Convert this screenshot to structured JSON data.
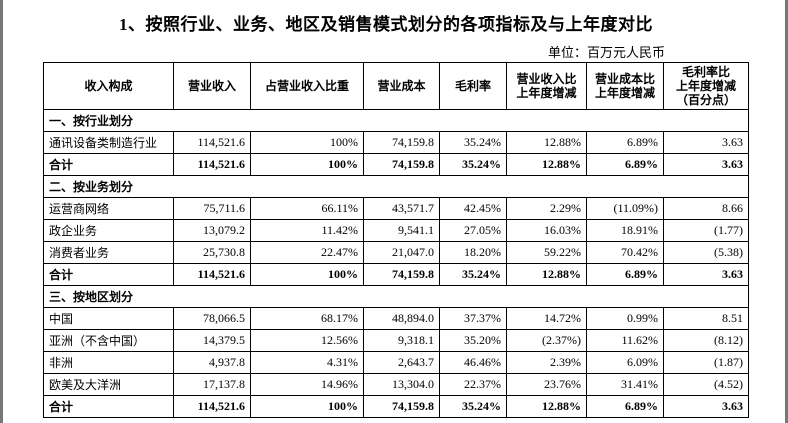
{
  "header": {
    "title": "1、按照行业、业务、地区及销售模式划分的各项指标及与上年度对比",
    "unit": "单位：百万元人民币"
  },
  "table": {
    "columns": [
      "收入构成",
      "营业收入",
      "占营业收入比重",
      "营业成本",
      "毛利率",
      "营业收入比\n上年度增减",
      "营业成本比\n上年度增减",
      "毛利率比\n上年度增减\n（百分点）"
    ],
    "sections": [
      {
        "title": "一、按行业划分",
        "rows": [
          [
            "通讯设备类制造行业",
            "114,521.6",
            "100%",
            "74,159.8",
            "35.24%",
            "12.88%",
            "6.89%",
            "3.63"
          ],
          [
            "合计",
            "114,521.6",
            "100%",
            "74,159.8",
            "35.24%",
            "12.88%",
            "6.89%",
            "3.63"
          ]
        ]
      },
      {
        "title": "二、按业务划分",
        "rows": [
          [
            "运营商网络",
            "75,711.6",
            "66.11%",
            "43,571.7",
            "42.45%",
            "2.29%",
            "(11.09%)",
            "8.66"
          ],
          [
            "政企业务",
            "13,079.2",
            "11.42%",
            "9,541.1",
            "27.05%",
            "16.03%",
            "18.91%",
            "(1.77)"
          ],
          [
            "消费者业务",
            "25,730.8",
            "22.47%",
            "21,047.0",
            "18.20%",
            "59.22%",
            "70.42%",
            "(5.38)"
          ],
          [
            "合计",
            "114,521.6",
            "100%",
            "74,159.8",
            "35.24%",
            "12.88%",
            "6.89%",
            "3.63"
          ]
        ]
      },
      {
        "title": "三、按地区划分",
        "rows": [
          [
            "中国",
            "78,066.5",
            "68.17%",
            "48,894.0",
            "37.37%",
            "14.72%",
            "0.99%",
            "8.51"
          ],
          [
            "亚洲（不含中国）",
            "14,379.5",
            "12.56%",
            "9,318.1",
            "35.20%",
            "(2.37%)",
            "11.62%",
            "(8.12)"
          ],
          [
            "非洲",
            "4,937.8",
            "4.31%",
            "2,643.7",
            "46.46%",
            "2.39%",
            "6.09%",
            "(1.87)"
          ],
          [
            "欧美及大洋洲",
            "17,137.8",
            "14.96%",
            "13,304.0",
            "22.37%",
            "23.76%",
            "31.41%",
            "(4.52)"
          ],
          [
            "合计",
            "114,521.6",
            "100%",
            "74,159.8",
            "35.24%",
            "12.88%",
            "6.89%",
            "3.63"
          ]
        ]
      }
    ]
  }
}
